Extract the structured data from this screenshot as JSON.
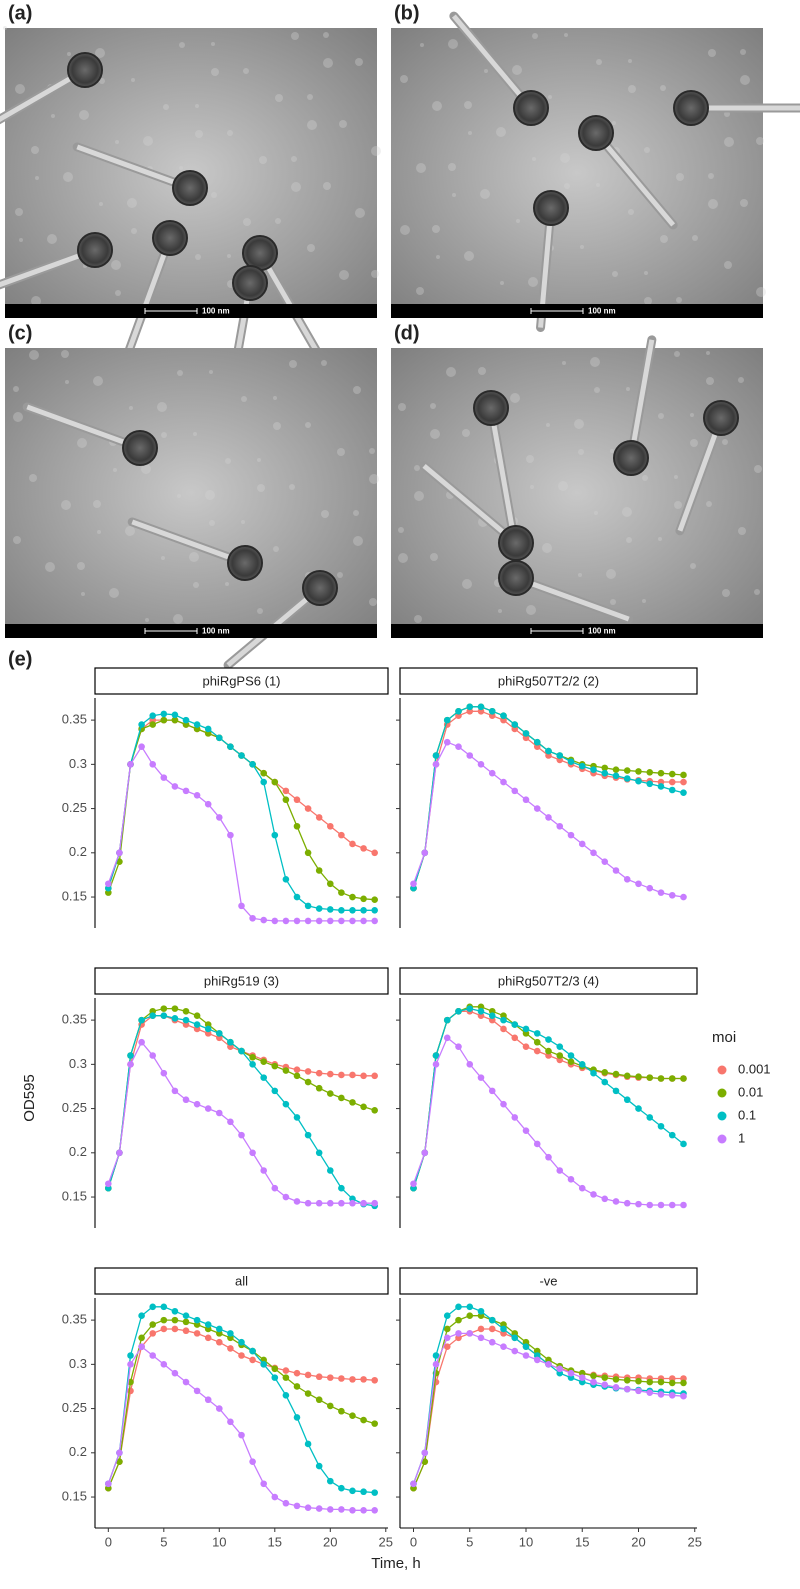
{
  "panels": [
    {
      "label": "(a)",
      "scale_bar": "100 nm"
    },
    {
      "label": "(b)",
      "scale_bar": "100 nm"
    },
    {
      "label": "(c)",
      "scale_bar": "100 nm"
    },
    {
      "label": "(d)",
      "scale_bar": "100 nm"
    }
  ],
  "chart_label": "(e)",
  "chart_data": {
    "type": "line",
    "xlabel": "Time, h",
    "ylabel": "OD595",
    "legend_title": "moi",
    "legend_position": "right",
    "x": [
      0,
      1,
      2,
      3,
      4,
      5,
      6,
      7,
      8,
      9,
      10,
      11,
      12,
      13,
      14,
      15,
      16,
      17,
      18,
      19,
      20,
      21,
      22,
      23,
      24
    ],
    "xlim": [
      -1.2,
      25.2
    ],
    "xticks": [
      0,
      5,
      10,
      15,
      20,
      25
    ],
    "ylim": [
      0.115,
      0.375
    ],
    "yticks": [
      0.15,
      0.2,
      0.25,
      0.3,
      0.35
    ],
    "facets": [
      {
        "title": "phiRgPS6 (1)",
        "series": [
          {
            "name": "0.001",
            "color": "#F8766D",
            "values": [
              0.16,
              0.2,
              0.3,
              0.34,
              0.35,
              0.35,
              0.35,
              0.345,
              0.34,
              0.335,
              0.33,
              0.32,
              0.31,
              0.3,
              0.29,
              0.28,
              0.27,
              0.26,
              0.25,
              0.24,
              0.23,
              0.22,
              0.21,
              0.205,
              0.2
            ]
          },
          {
            "name": "0.01",
            "color": "#7CAE00",
            "values": [
              0.155,
              0.19,
              0.3,
              0.34,
              0.345,
              0.35,
              0.35,
              0.345,
              0.34,
              0.335,
              0.33,
              0.32,
              0.31,
              0.3,
              0.29,
              0.28,
              0.26,
              0.23,
              0.2,
              0.18,
              0.165,
              0.155,
              0.15,
              0.148,
              0.147
            ]
          },
          {
            "name": "0.1",
            "color": "#00BFC4",
            "values": [
              0.16,
              0.2,
              0.3,
              0.345,
              0.355,
              0.357,
              0.356,
              0.35,
              0.345,
              0.34,
              0.33,
              0.32,
              0.31,
              0.3,
              0.28,
              0.22,
              0.17,
              0.15,
              0.14,
              0.137,
              0.136,
              0.135,
              0.135,
              0.135,
              0.135
            ]
          },
          {
            "name": "1",
            "color": "#C77CFF",
            "values": [
              0.165,
              0.2,
              0.3,
              0.32,
              0.3,
              0.285,
              0.275,
              0.27,
              0.265,
              0.255,
              0.24,
              0.22,
              0.14,
              0.126,
              0.124,
              0.123,
              0.123,
              0.123,
              0.123,
              0.123,
              0.123,
              0.123,
              0.123,
              0.123,
              0.123
            ]
          }
        ]
      },
      {
        "title": "phiRg507T2/2 (2)",
        "series": [
          {
            "name": "0.001",
            "color": "#F8766D",
            "values": [
              0.16,
              0.2,
              0.3,
              0.345,
              0.355,
              0.36,
              0.36,
              0.355,
              0.35,
              0.34,
              0.33,
              0.32,
              0.31,
              0.305,
              0.3,
              0.295,
              0.29,
              0.287,
              0.285,
              0.283,
              0.282,
              0.281,
              0.28,
              0.28,
              0.28
            ]
          },
          {
            "name": "0.01",
            "color": "#7CAE00",
            "values": [
              0.16,
              0.2,
              0.31,
              0.35,
              0.36,
              0.365,
              0.365,
              0.36,
              0.355,
              0.345,
              0.335,
              0.325,
              0.315,
              0.31,
              0.305,
              0.3,
              0.298,
              0.296,
              0.294,
              0.293,
              0.292,
              0.291,
              0.29,
              0.289,
              0.288
            ]
          },
          {
            "name": "0.1",
            "color": "#00BFC4",
            "values": [
              0.16,
              0.2,
              0.31,
              0.35,
              0.36,
              0.365,
              0.365,
              0.36,
              0.355,
              0.345,
              0.335,
              0.325,
              0.315,
              0.31,
              0.303,
              0.298,
              0.294,
              0.29,
              0.287,
              0.284,
              0.281,
              0.278,
              0.275,
              0.271,
              0.268
            ]
          },
          {
            "name": "1",
            "color": "#C77CFF",
            "values": [
              0.165,
              0.2,
              0.3,
              0.325,
              0.32,
              0.31,
              0.3,
              0.29,
              0.28,
              0.27,
              0.26,
              0.25,
              0.24,
              0.23,
              0.22,
              0.21,
              0.2,
              0.19,
              0.18,
              0.17,
              0.165,
              0.16,
              0.155,
              0.152,
              0.15
            ]
          }
        ]
      },
      {
        "title": "phiRg519 (3)",
        "series": [
          {
            "name": "0.001",
            "color": "#F8766D",
            "values": [
              0.16,
              0.2,
              0.3,
              0.345,
              0.355,
              0.355,
              0.35,
              0.345,
              0.34,
              0.335,
              0.33,
              0.32,
              0.315,
              0.31,
              0.305,
              0.3,
              0.297,
              0.294,
              0.292,
              0.29,
              0.289,
              0.288,
              0.288,
              0.287,
              0.287
            ]
          },
          {
            "name": "0.01",
            "color": "#7CAE00",
            "values": [
              0.16,
              0.2,
              0.31,
              0.35,
              0.36,
              0.363,
              0.363,
              0.36,
              0.355,
              0.345,
              0.335,
              0.325,
              0.315,
              0.308,
              0.303,
              0.298,
              0.293,
              0.287,
              0.28,
              0.273,
              0.267,
              0.262,
              0.257,
              0.252,
              0.248
            ]
          },
          {
            "name": "0.1",
            "color": "#00BFC4",
            "values": [
              0.16,
              0.2,
              0.31,
              0.35,
              0.355,
              0.355,
              0.352,
              0.35,
              0.345,
              0.34,
              0.335,
              0.325,
              0.315,
              0.3,
              0.285,
              0.27,
              0.255,
              0.24,
              0.22,
              0.2,
              0.18,
              0.16,
              0.148,
              0.142,
              0.14
            ]
          },
          {
            "name": "1",
            "color": "#C77CFF",
            "values": [
              0.165,
              0.2,
              0.3,
              0.325,
              0.31,
              0.29,
              0.27,
              0.26,
              0.255,
              0.25,
              0.245,
              0.235,
              0.22,
              0.2,
              0.18,
              0.16,
              0.15,
              0.145,
              0.143,
              0.143,
              0.143,
              0.143,
              0.143,
              0.143,
              0.143
            ]
          }
        ]
      },
      {
        "title": "phiRg507T2/3 (4)",
        "series": [
          {
            "name": "0.001",
            "color": "#F8766D",
            "values": [
              0.16,
              0.2,
              0.31,
              0.35,
              0.36,
              0.36,
              0.355,
              0.35,
              0.34,
              0.33,
              0.32,
              0.315,
              0.31,
              0.305,
              0.3,
              0.296,
              0.293,
              0.29,
              0.288,
              0.286,
              0.285,
              0.285,
              0.284,
              0.284,
              0.284
            ]
          },
          {
            "name": "0.01",
            "color": "#7CAE00",
            "values": [
              0.16,
              0.2,
              0.31,
              0.35,
              0.36,
              0.365,
              0.365,
              0.36,
              0.355,
              0.345,
              0.335,
              0.325,
              0.315,
              0.31,
              0.303,
              0.298,
              0.294,
              0.291,
              0.289,
              0.287,
              0.286,
              0.285,
              0.284,
              0.284,
              0.284
            ]
          },
          {
            "name": "0.1",
            "color": "#00BFC4",
            "values": [
              0.16,
              0.2,
              0.31,
              0.35,
              0.36,
              0.363,
              0.36,
              0.355,
              0.35,
              0.345,
              0.34,
              0.335,
              0.328,
              0.32,
              0.31,
              0.3,
              0.29,
              0.28,
              0.27,
              0.26,
              0.25,
              0.24,
              0.23,
              0.22,
              0.21
            ]
          },
          {
            "name": "1",
            "color": "#C77CFF",
            "values": [
              0.165,
              0.2,
              0.3,
              0.33,
              0.32,
              0.3,
              0.285,
              0.27,
              0.255,
              0.24,
              0.225,
              0.21,
              0.195,
              0.18,
              0.17,
              0.16,
              0.153,
              0.148,
              0.145,
              0.143,
              0.142,
              0.141,
              0.141,
              0.141,
              0.141
            ]
          }
        ]
      },
      {
        "title": "all",
        "series": [
          {
            "name": "0.001",
            "color": "#F8766D",
            "values": [
              0.16,
              0.19,
              0.27,
              0.32,
              0.335,
              0.34,
              0.34,
              0.338,
              0.335,
              0.33,
              0.325,
              0.318,
              0.31,
              0.305,
              0.3,
              0.296,
              0.293,
              0.29,
              0.288,
              0.286,
              0.285,
              0.284,
              0.283,
              0.283,
              0.282
            ]
          },
          {
            "name": "0.01",
            "color": "#7CAE00",
            "values": [
              0.16,
              0.19,
              0.28,
              0.33,
              0.345,
              0.35,
              0.35,
              0.348,
              0.345,
              0.34,
              0.335,
              0.33,
              0.322,
              0.315,
              0.305,
              0.295,
              0.285,
              0.275,
              0.267,
              0.26,
              0.253,
              0.247,
              0.242,
              0.237,
              0.233
            ]
          },
          {
            "name": "0.1",
            "color": "#00BFC4",
            "values": [
              0.165,
              0.2,
              0.31,
              0.355,
              0.365,
              0.365,
              0.36,
              0.355,
              0.35,
              0.345,
              0.34,
              0.335,
              0.325,
              0.315,
              0.3,
              0.285,
              0.265,
              0.24,
              0.21,
              0.185,
              0.168,
              0.16,
              0.157,
              0.156,
              0.155
            ]
          },
          {
            "name": "1",
            "color": "#C77CFF",
            "values": [
              0.165,
              0.2,
              0.3,
              0.32,
              0.31,
              0.3,
              0.29,
              0.28,
              0.27,
              0.26,
              0.25,
              0.235,
              0.22,
              0.19,
              0.165,
              0.15,
              0.143,
              0.14,
              0.138,
              0.137,
              0.136,
              0.136,
              0.135,
              0.135,
              0.135
            ]
          }
        ]
      },
      {
        "title": "-ve",
        "series": [
          {
            "name": "0.001",
            "color": "#F8766D",
            "values": [
              0.16,
              0.19,
              0.28,
              0.32,
              0.33,
              0.335,
              0.34,
              0.34,
              0.335,
              0.33,
              0.32,
              0.31,
              0.3,
              0.295,
              0.292,
              0.29,
              0.288,
              0.287,
              0.286,
              0.285,
              0.285,
              0.284,
              0.284,
              0.284,
              0.284
            ]
          },
          {
            "name": "0.01",
            "color": "#7CAE00",
            "values": [
              0.16,
              0.19,
              0.29,
              0.34,
              0.35,
              0.355,
              0.355,
              0.35,
              0.345,
              0.335,
              0.325,
              0.315,
              0.305,
              0.298,
              0.293,
              0.29,
              0.287,
              0.285,
              0.283,
              0.282,
              0.281,
              0.28,
              0.28,
              0.279,
              0.279
            ]
          },
          {
            "name": "0.1",
            "color": "#00BFC4",
            "values": [
              0.165,
              0.2,
              0.31,
              0.355,
              0.365,
              0.365,
              0.36,
              0.35,
              0.34,
              0.33,
              0.32,
              0.31,
              0.3,
              0.29,
              0.285,
              0.28,
              0.277,
              0.275,
              0.273,
              0.272,
              0.271,
              0.27,
              0.269,
              0.268,
              0.267
            ]
          },
          {
            "name": "1",
            "color": "#C77CFF",
            "values": [
              0.165,
              0.2,
              0.3,
              0.33,
              0.335,
              0.335,
              0.33,
              0.325,
              0.32,
              0.315,
              0.31,
              0.305,
              0.3,
              0.295,
              0.29,
              0.285,
              0.28,
              0.277,
              0.274,
              0.272,
              0.27,
              0.268,
              0.266,
              0.265,
              0.264
            ]
          }
        ]
      }
    ]
  }
}
